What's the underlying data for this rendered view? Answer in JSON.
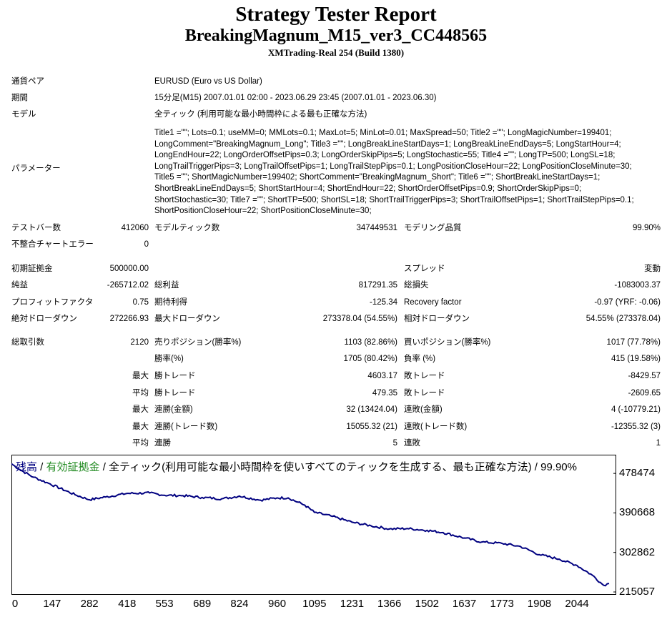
{
  "header": {
    "title": "Strategy Tester Report",
    "subtitle": "BreakingMagnum_M15_ver3_CC448565",
    "server": "XMTrading-Real 254 (Build 1380)"
  },
  "info": {
    "pair_label": "通貨ペア",
    "pair_value": "EURUSD (Euro vs US Dollar)",
    "period_label": "期間",
    "period_value": "15分足(M15) 2007.01.01 02:00 - 2023.06.29 23:45 (2007.01.01 - 2023.06.30)",
    "model_label": "モデル",
    "model_value": "全ティック (利用可能な最小時間枠による最も正確な方法)",
    "params_label": "パラメーター",
    "params_value": "Title1 =\"\"; Lots=0.1; useMM=0; MMLots=0.1; MaxLot=5; MinLot=0.01; MaxSpread=50; Title2 =\"\"; LongMagicNumber=199401;\nLongComment=\"BreakingMagnum_Long\"; Title3 =\"\"; LongBreakLineStartDays=1; LongBreakLineEndDays=5; LongStartHour=4;\nLongEndHour=22; LongOrderOffsetPips=0.3; LongOrderSkipPips=5; LongStochastic=55; Title4 =\"\"; LongTP=500; LongSL=18;\nLongTrailTriggerPips=3; LongTrailOffsetPips=1; LongTrailStepPips=0.1; LongPositionCloseHour=22; LongPositionCloseMinute=30;\nTitle5 =\"\"; ShortMagicNumber=199402; ShortComment=\"BreakingMagnum_Short\"; Title6 =\"\"; ShortBreakLineStartDays=1;\nShortBreakLineEndDays=5; ShortStartHour=4; ShortEndHour=22; ShortOrderOffsetPips=0.9; ShortOrderSkipPips=0;\nShortStochastic=30; Title7 =\"\"; ShortTP=500; ShortSL=18; ShortTrailTriggerPips=3; ShortTrailOffsetPips=1; ShortTrailStepPips=0.1;\nShortPositionCloseHour=22; ShortPositionCloseMinute=30;"
  },
  "stats": {
    "bars_label": "テストバー数",
    "bars_value": "412060",
    "ticks_label": "モデルティック数",
    "ticks_value": "347449531",
    "quality_label": "モデリング品質",
    "quality_value": "99.90%",
    "mismatch_label": "不整合チャートエラー",
    "mismatch_value": "0",
    "deposit_label": "初期証拠金",
    "deposit_value": "500000.00",
    "spread_label": "スプレッド",
    "spread_value": "変動",
    "netprofit_label": "純益",
    "netprofit_value": "-265712.02",
    "grossprofit_label": "総利益",
    "grossprofit_value": "817291.35",
    "grossloss_label": "総損失",
    "grossloss_value": "-1083003.37",
    "pf_label": "プロフィットファクタ",
    "pf_value": "0.75",
    "expected_label": "期待利得",
    "expected_value": "-125.34",
    "recovery_label": "Recovery factor",
    "recovery_value": "-0.97 (YRF: -0.06)",
    "absdd_label": "絶対ドローダウン",
    "absdd_value": "272266.93",
    "maxdd_label": "最大ドローダウン",
    "maxdd_value": "273378.04 (54.55%)",
    "reldd_label": "相対ドローダウン",
    "reldd_value": "54.55% (273378.04)",
    "trades_label": "総取引数",
    "trades_value": "2120",
    "short_label": "売りポジション(勝率%)",
    "short_value": "1103 (82.86%)",
    "long_label": "買いポジション(勝率%)",
    "long_value": "1017 (77.78%)",
    "winrate_label": "勝率(%)",
    "winrate_value": "1705 (80.42%)",
    "lossrate_label": "負率 (%)",
    "lossrate_value": "415 (19.58%)",
    "max_label": "最大",
    "avg_label": "平均",
    "win_trade_label": "勝トレード",
    "loss_trade_label": "敗トレード",
    "max_win_trade": "4603.17",
    "max_loss_trade": "-8429.57",
    "avg_win_trade": "479.35",
    "avg_loss_trade": "-2609.65",
    "consec_win_amt_label": "連勝(金額)",
    "consec_win_amt": "32 (13424.04)",
    "consec_loss_amt_label": "連敗(金額)",
    "consec_loss_amt": "4 (-10779.21)",
    "consec_win_cnt_label": "連勝(トレード数)",
    "consec_win_cnt": "15055.32 (21)",
    "consec_loss_cnt_label": "連敗(トレード数)",
    "consec_loss_cnt": "-12355.32 (3)",
    "avg_consec_win_label": "連勝",
    "avg_consec_win": "5",
    "avg_consec_loss_label": "連敗",
    "avg_consec_loss": "1"
  },
  "chart_legend": {
    "balance": "残高",
    "sep1": " / ",
    "equity": "有効証拠金",
    "rest": " / 全ティック(利用可能な最小時間枠を使いすべてのティックを生成する、最も正確な方法) / 99.90%"
  },
  "colors": {
    "balance": "#000080",
    "equity": "#228B22",
    "grid": "#c0c0c0"
  },
  "chart_data": {
    "type": "line",
    "series": [
      {
        "name": "残高",
        "x": [
          0,
          30,
          80,
          140,
          230,
          282,
          340,
          418,
          500,
          553,
          620,
          689,
          760,
          824,
          900,
          960,
          1000,
          1060,
          1095,
          1160,
          1231,
          1300,
          1366,
          1430,
          1502,
          1560,
          1637,
          1700,
          1773,
          1840,
          1908,
          1980,
          2044,
          2100,
          2140,
          2160
        ],
        "y": [
          500000,
          487000,
          470000,
          455000,
          431000,
          420000,
          426000,
          434000,
          435000,
          430000,
          429000,
          425000,
          422000,
          428000,
          419000,
          424000,
          424000,
          408000,
          392000,
          383000,
          370000,
          362000,
          355000,
          356000,
          352000,
          347000,
          335000,
          326000,
          323000,
          316000,
          298000,
          288000,
          274000,
          252000,
          230000,
          234000
        ]
      }
    ],
    "yticks": [
      478474,
      390668,
      302862,
      215057
    ],
    "xticks": [
      0,
      147,
      282,
      418,
      553,
      689,
      824,
      960,
      1095,
      1231,
      1366,
      1502,
      1637,
      1773,
      1908,
      2044
    ],
    "xlim": [
      0,
      2160
    ],
    "ylim": [
      215057,
      520000
    ],
    "grid": false
  }
}
